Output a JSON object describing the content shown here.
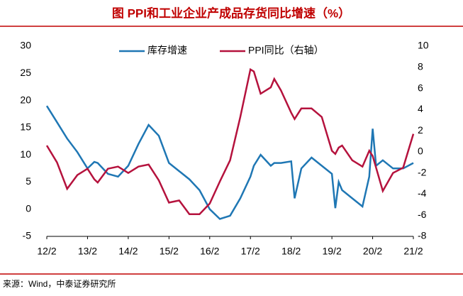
{
  "chart_data": {
    "type": "line",
    "title": "图 PPI和工业企业产成品存货同比增速（%）",
    "source": "来源：Wind，中泰证券研究所",
    "x": [
      2012.083,
      2012.333,
      2012.583,
      2012.833,
      2013.083,
      2013.25,
      2013.333,
      2013.583,
      2013.833,
      2014.083,
      2014.333,
      2014.583,
      2014.833,
      2015.083,
      2015.333,
      2015.583,
      2015.833,
      2016.083,
      2016.333,
      2016.583,
      2016.833,
      2017.083,
      2017.167,
      2017.333,
      2017.583,
      2017.667,
      2017.833,
      2018.083,
      2018.167,
      2018.333,
      2018.583,
      2018.833,
      2019.083,
      2019.167,
      2019.25,
      2019.333,
      2019.583,
      2019.833,
      2020.0,
      2020.083,
      2020.167,
      2020.333,
      2020.583,
      2020.833,
      2021.083
    ],
    "series": [
      {
        "name": "库存增速",
        "color": "#1f77b4",
        "values": [
          19,
          16,
          13,
          10.5,
          7.5,
          8.7,
          8.5,
          6.5,
          6,
          8,
          12,
          15.5,
          13.5,
          8.5,
          7,
          5.5,
          3.5,
          0,
          -1.8,
          -1.2,
          2,
          6,
          8,
          10,
          8,
          8.5,
          8.5,
          8.8,
          2,
          7.5,
          9.5,
          8,
          6.5,
          0.2,
          5,
          3.5,
          2,
          0.5,
          6,
          14.8,
          8,
          9,
          7.5,
          7.5,
          8.5
        ]
      },
      {
        "name": "PPI同比（右轴）",
        "color": "#b5123d",
        "axis": "y2",
        "values": [
          0.6,
          -1,
          -3.5,
          -2.2,
          -1.6,
          -2.6,
          -2.9,
          -1.6,
          -1.4,
          -2.0,
          -1.4,
          -1.2,
          -2.7,
          -4.8,
          -4.6,
          -5.9,
          -5.9,
          -4.9,
          -2.8,
          -0.8,
          3.3,
          7.8,
          7.6,
          5.5,
          6.1,
          6.9,
          5.8,
          3.7,
          3.1,
          4.1,
          4.1,
          3.3,
          0.1,
          -0.2,
          0.4,
          0.6,
          -0.8,
          -1.4,
          0.1,
          -0.4,
          -1.5,
          -3.7,
          -2.0,
          -1.5,
          1.7
        ]
      }
    ],
    "xlim": [
      2012.083,
      2021.083
    ],
    "xticks": [
      {
        "value": 2012.083,
        "label": "12/2"
      },
      {
        "value": 2013.083,
        "label": "13/2"
      },
      {
        "value": 2014.083,
        "label": "14/2"
      },
      {
        "value": 2015.083,
        "label": "15/2"
      },
      {
        "value": 2016.083,
        "label": "16/2"
      },
      {
        "value": 2017.083,
        "label": "17/2"
      },
      {
        "value": 2018.083,
        "label": "18/2"
      },
      {
        "value": 2019.083,
        "label": "19/2"
      },
      {
        "value": 2020.083,
        "label": "20/2"
      },
      {
        "value": 2021.083,
        "label": "21/2"
      }
    ],
    "ylim": [
      -5,
      30
    ],
    "yticks": [
      -5,
      0,
      5,
      10,
      15,
      20,
      25,
      30
    ],
    "y2lim": [
      -8,
      10
    ],
    "y2ticks": [
      -8,
      -6,
      -4,
      -2,
      0,
      2,
      4,
      6,
      8,
      10
    ],
    "legend": "top"
  }
}
